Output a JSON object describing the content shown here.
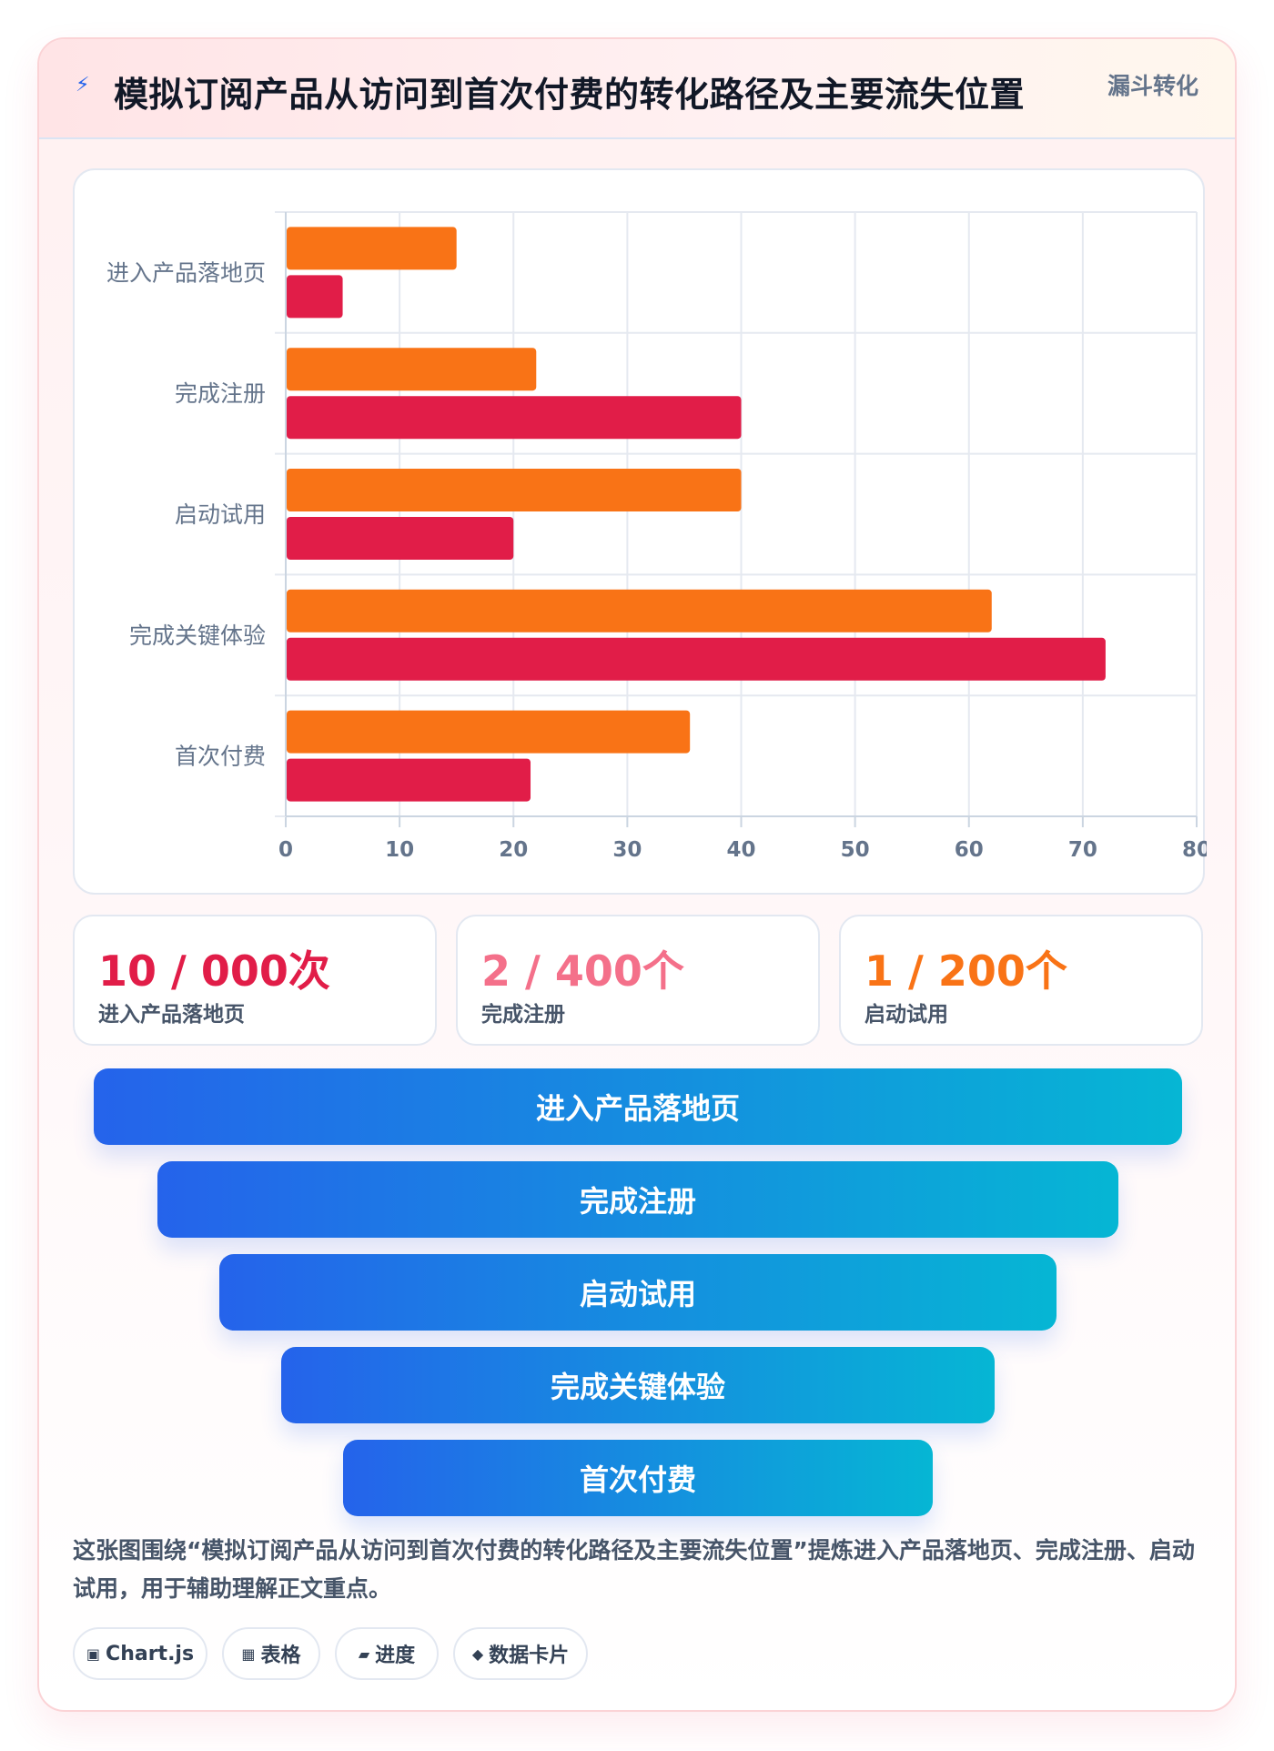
{
  "header": {
    "title": "模拟订阅产品从访问到首次付费的转化路径及主要流失位置",
    "tag": "漏斗转化",
    "icon": "bolt-icon"
  },
  "chart_data": {
    "type": "bar",
    "orientation": "horizontal",
    "categories": [
      "进入产品落地页",
      "完成注册",
      "启动试用",
      "完成关键体验",
      "首次付费"
    ],
    "series": [
      {
        "values": [
          15,
          22,
          40,
          62,
          35.5
        ],
        "color": "#f97316"
      },
      {
        "values": [
          5,
          40,
          20,
          72,
          21.5
        ],
        "color": "#e11d48"
      }
    ],
    "xlim": [
      0,
      80
    ],
    "xticks": [
      0,
      10,
      20,
      30,
      40,
      50,
      60,
      70,
      80
    ],
    "grid": true,
    "title": "",
    "xlabel": "",
    "ylabel": ""
  },
  "stats": [
    {
      "value": "10 / 000次",
      "label": "进入产品落地页",
      "color": "#e11d48"
    },
    {
      "value": "2 / 400个",
      "label": "完成注册",
      "color": "#f4708a"
    },
    {
      "value": "1 / 200个",
      "label": "启动试用",
      "color": "#f97316"
    }
  ],
  "funnel": [
    "进入产品落地页",
    "完成注册",
    "启动试用",
    "完成关键体验",
    "首次付费"
  ],
  "description": "这张图围绕“模拟订阅产品从访问到首次付费的转化路径及主要流失位置”提炼进入产品落地页、完成注册、启动试用，用于辅助理解正文重点。",
  "chips": [
    {
      "icon": "▣",
      "label": "Chart.js"
    },
    {
      "icon": "▦",
      "label": "表格"
    },
    {
      "icon": "▰",
      "label": "进度"
    },
    {
      "icon": "◆",
      "label": "数据卡片"
    }
  ]
}
